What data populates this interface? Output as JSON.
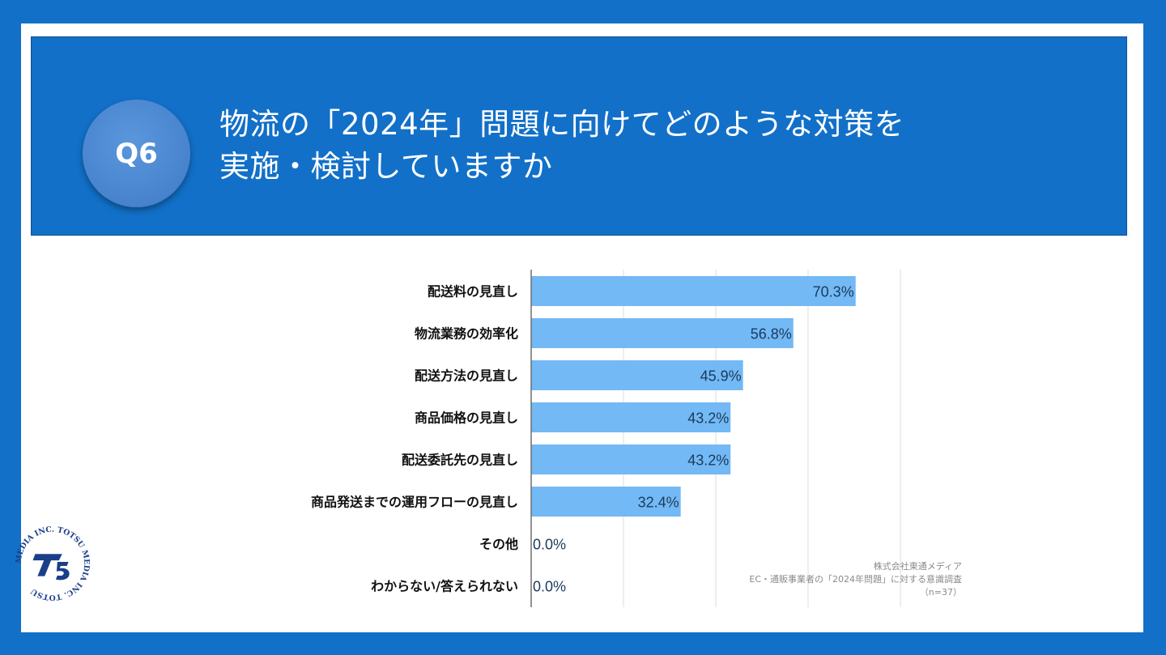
{
  "header": {
    "badge": "Q6",
    "title_line1": "物流の「2024年」問題に向けてどのような対策を",
    "title_line2": "実施・検討していますか"
  },
  "colors": {
    "background": "#1270c8",
    "bar": "#73b9f5",
    "bar_border": "#5aa6e8",
    "label_text": "#1a3a5c"
  },
  "chart_data": {
    "type": "bar",
    "orientation": "horizontal",
    "categories": [
      "配送料の見直し",
      "物流業務の効率化",
      "配送方法の見直し",
      "商品価格の見直し",
      "配送委託先の見直し",
      "商品発送までの運用フローの見直し",
      "その他",
      "わからない/答えられない"
    ],
    "values": [
      70.3,
      56.8,
      45.9,
      43.2,
      43.2,
      32.4,
      0.0,
      0.0
    ],
    "value_labels": [
      "70.3%",
      "56.8%",
      "45.9%",
      "43.2%",
      "43.2%",
      "32.4%",
      "0.0%",
      "0.0%"
    ],
    "xlim": [
      0,
      80
    ],
    "grid": true,
    "title": "",
    "xlabel": "",
    "ylabel": ""
  },
  "source": {
    "line1": "株式会社東通メディア",
    "line2": "EC・通販事業者の「2024年問題」に対する意識調査",
    "line3": "（n=37）"
  },
  "logo": {
    "text": "MEDIA INC. TOTSU MEDIA INC. TOTSU"
  }
}
